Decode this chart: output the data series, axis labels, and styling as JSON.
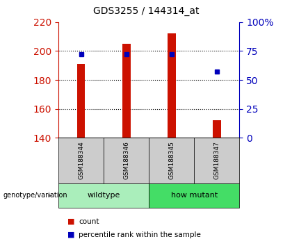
{
  "title": "GDS3255 / 144314_at",
  "samples": [
    "GSM188344",
    "GSM188346",
    "GSM188345",
    "GSM188347"
  ],
  "groups": [
    {
      "label": "wildtype",
      "indices": [
        0,
        1
      ],
      "color": "#AAEEBB"
    },
    {
      "label": "how mutant",
      "indices": [
        2,
        3
      ],
      "color": "#44DD66"
    }
  ],
  "count_values": [
    191,
    205,
    212,
    152
  ],
  "percentile_values": [
    72,
    72,
    72,
    57
  ],
  "bar_bottom": 140,
  "left_ylim": [
    140,
    220
  ],
  "right_ylim": [
    0,
    100
  ],
  "left_yticks": [
    140,
    160,
    180,
    200,
    220
  ],
  "right_yticks": [
    0,
    25,
    50,
    75,
    100
  ],
  "right_yticklabels": [
    "0",
    "25",
    "50",
    "75",
    "100%"
  ],
  "grid_values": [
    160,
    180,
    200
  ],
  "bar_color": "#CC1100",
  "percentile_color": "#0000BB",
  "bar_width": 0.18,
  "left_axis_color": "#CC1100",
  "right_axis_color": "#0000BB",
  "sample_box_color": "#CCCCCC",
  "group_label": "genotype/variation",
  "legend_count_label": "count",
  "legend_percentile_label": "percentile rank within the sample",
  "background_color": "#ffffff"
}
